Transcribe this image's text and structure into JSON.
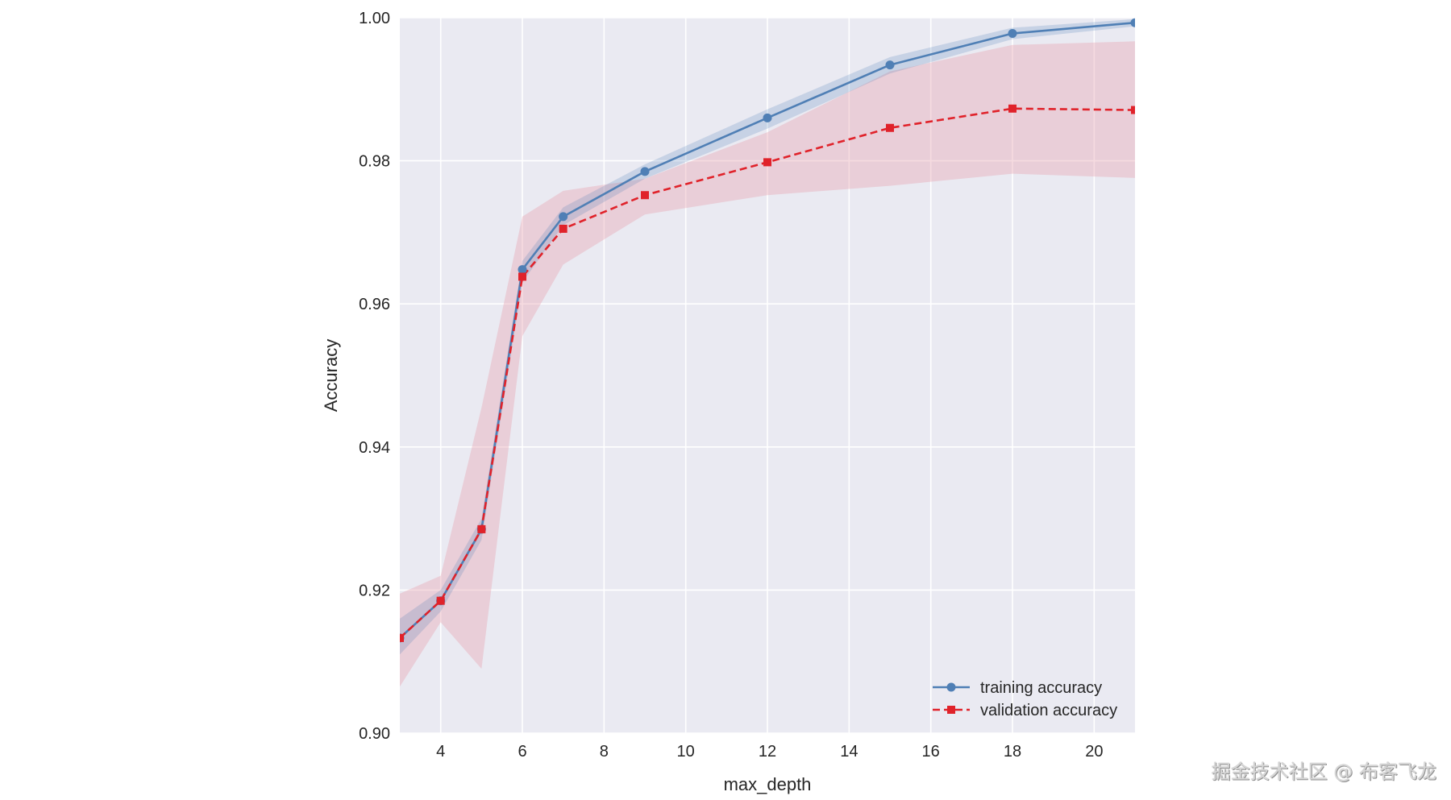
{
  "chart_data": {
    "type": "line",
    "xlabel": "max_depth",
    "ylabel": "Accuracy",
    "xlim": [
      3,
      21
    ],
    "ylim": [
      0.9,
      1.0
    ],
    "xticks": [
      "4",
      "6",
      "8",
      "10",
      "12",
      "14",
      "16",
      "18",
      "20"
    ],
    "yticks": [
      "0.90",
      "0.92",
      "0.94",
      "0.96",
      "0.98",
      "1.00"
    ],
    "grid": true,
    "legend_position": "bottom-right",
    "x": [
      3,
      4,
      5,
      6,
      7,
      9,
      12,
      15,
      18,
      21
    ],
    "series": [
      {
        "name": "training accuracy",
        "color": "#4f7fb5",
        "band_color": "#4f7fb5",
        "marker": "circle",
        "linestyle": "solid",
        "values": [
          0.9133,
          0.9185,
          0.9285,
          0.9648,
          0.9722,
          0.9785,
          0.986,
          0.9934,
          0.9978,
          0.9993
        ],
        "lower": [
          0.911,
          0.917,
          0.927,
          0.963,
          0.971,
          0.9775,
          0.9845,
          0.9922,
          0.997,
          0.9988
        ],
        "upper": [
          0.916,
          0.92,
          0.93,
          0.966,
          0.9735,
          0.9795,
          0.9872,
          0.9945,
          0.9986,
          0.9998
        ]
      },
      {
        "name": "validation accuracy",
        "color": "#e0222a",
        "band_color": "#e8a0ad",
        "marker": "square",
        "linestyle": "dashed",
        "values": [
          0.9133,
          0.9185,
          0.9285,
          0.9638,
          0.9705,
          0.9752,
          0.9798,
          0.9846,
          0.9873,
          0.9871
        ],
        "lower": [
          0.9065,
          0.9155,
          0.909,
          0.9555,
          0.9655,
          0.9725,
          0.9752,
          0.9765,
          0.9782,
          0.9776
        ],
        "upper": [
          0.9195,
          0.922,
          0.9455,
          0.9722,
          0.9758,
          0.9775,
          0.984,
          0.9925,
          0.9962,
          0.9967
        ]
      }
    ]
  },
  "watermark": "掘金技术社区 @ 布客飞龙"
}
